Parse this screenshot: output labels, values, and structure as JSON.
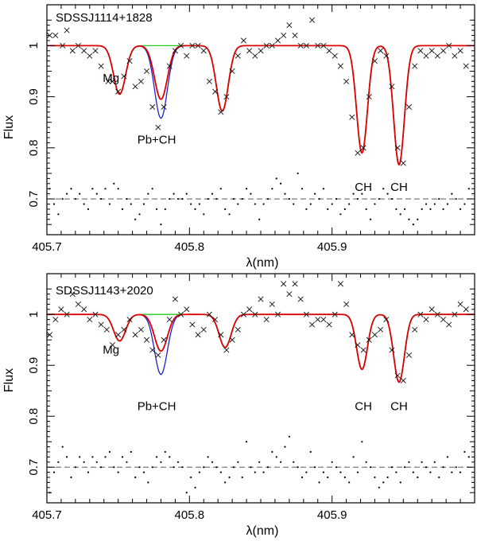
{
  "chart_data": [
    {
      "type": "line",
      "title": "SDSSJ1114+1828",
      "xlabel": "λ(nm)",
      "ylabel": "Flux",
      "xlim": [
        405.7,
        406.0
      ],
      "ylim": [
        0.63,
        1.08
      ],
      "xticks": [
        405.7,
        405.8,
        405.9
      ],
      "xtick_labels": [
        "405.7",
        "405.8",
        "405.9"
      ],
      "yticks": [
        0.7,
        0.8,
        0.9,
        1.0
      ],
      "ytick_labels": [
        "0.7",
        "0.8",
        "0.9",
        "1"
      ],
      "residual_offset": 0.7,
      "annotations": [
        {
          "text": "Mg",
          "x": 405.745,
          "y": 0.929
        },
        {
          "text": "Pb+CH",
          "x": 405.777,
          "y": 0.808
        },
        {
          "text": "CH",
          "x": 405.922,
          "y": 0.716
        },
        {
          "text": "CH",
          "x": 405.947,
          "y": 0.716
        }
      ],
      "lines": [
        {
          "name": "Mg",
          "center": 405.751,
          "sigma": 0.0042
        },
        {
          "name": "Pb+CH",
          "center": 405.78,
          "sigma": 0.0045
        },
        {
          "name": "line3",
          "center": 405.823,
          "sigma": 0.0042
        },
        {
          "name": "CH",
          "center": 405.921,
          "sigma": 0.0038
        },
        {
          "name": "CH",
          "center": 405.947,
          "sigma": 0.0038
        }
      ],
      "series": [
        {
          "name": "synthetic-red",
          "color": "#dd0000",
          "depths": [
            0.095,
            0.105,
            0.128,
            0.21,
            0.233
          ]
        },
        {
          "name": "synthetic-green",
          "color": "#22cc22",
          "depths": [
            0.095,
            0.0,
            0.128,
            0.21,
            0.233
          ]
        },
        {
          "name": "synthetic-blue",
          "color": "#1f22cc",
          "depths": [
            0.095,
            0.142,
            0.128,
            0.21,
            0.233
          ]
        }
      ],
      "observed": {
        "x": [
          405.702,
          405.706,
          405.711,
          405.714,
          405.718,
          405.722,
          405.726,
          405.73,
          405.734,
          405.738,
          405.743,
          405.746,
          405.75,
          405.754,
          405.758,
          405.762,
          405.766,
          405.77,
          405.774,
          405.778,
          405.782,
          405.786,
          405.79,
          405.794,
          405.798,
          405.802,
          405.806,
          405.81,
          405.814,
          405.818,
          405.822,
          405.826,
          405.83,
          405.834,
          405.838,
          405.842,
          405.846,
          405.85,
          405.854,
          405.858,
          405.862,
          405.866,
          405.87,
          405.874,
          405.878,
          405.882,
          405.886,
          405.89,
          405.894,
          405.898,
          405.902,
          405.906,
          405.91,
          405.914,
          405.918,
          405.922,
          405.926,
          405.93,
          405.934,
          405.938,
          405.942,
          405.946,
          405.95,
          405.954,
          405.958,
          405.962,
          405.966,
          405.97,
          405.974,
          405.978,
          405.982,
          405.986,
          405.99,
          405.994
        ],
        "y": [
          1.02,
          1.02,
          1.0,
          1.03,
          0.99,
          1.0,
          0.99,
          0.98,
          0.99,
          0.96,
          0.93,
          0.93,
          0.91,
          0.94,
          0.97,
          0.92,
          0.93,
          0.95,
          0.88,
          0.84,
          0.88,
          0.96,
          0.99,
          1.0,
          0.98,
          1.0,
          1.0,
          0.99,
          0.93,
          0.91,
          0.87,
          0.9,
          0.95,
          0.98,
          1.01,
          0.99,
          0.98,
          0.99,
          1.0,
          1.0,
          1.01,
          1.02,
          1.04,
          1.02,
          1.0,
          1.0,
          1.05,
          1.0,
          1.0,
          0.99,
          0.98,
          0.96,
          0.93,
          0.86,
          0.79,
          0.8,
          0.9,
          0.97,
          0.99,
          0.98,
          0.92,
          0.8,
          0.77,
          0.88,
          0.96,
          0.99,
          0.98,
          0.99,
          0.98,
          0.99,
          1.0,
          0.98,
          0.99,
          0.96
        ]
      },
      "residuals": {
        "x": [
          405.702,
          405.705,
          405.708,
          405.711,
          405.714,
          405.717,
          405.72,
          405.723,
          405.726,
          405.729,
          405.732,
          405.735,
          405.738,
          405.741,
          405.744,
          405.747,
          405.75,
          405.753,
          405.756,
          405.759,
          405.762,
          405.765,
          405.768,
          405.771,
          405.774,
          405.777,
          405.78,
          405.783,
          405.786,
          405.789,
          405.792,
          405.795,
          405.798,
          405.801,
          405.804,
          405.807,
          405.81,
          405.813,
          405.816,
          405.819,
          405.822,
          405.825,
          405.828,
          405.831,
          405.834,
          405.837,
          405.84,
          405.843,
          405.846,
          405.849,
          405.852,
          405.855,
          405.858,
          405.861,
          405.864,
          405.867,
          405.87,
          405.873,
          405.876,
          405.879,
          405.882,
          405.885,
          405.888,
          405.891,
          405.894,
          405.897,
          405.9,
          405.903,
          405.906,
          405.909,
          405.912,
          405.915,
          405.918,
          405.921,
          405.924,
          405.927,
          405.93,
          405.933,
          405.936,
          405.939,
          405.942,
          405.945,
          405.948,
          405.951,
          405.954,
          405.957,
          405.96,
          405.963,
          405.966,
          405.969,
          405.972,
          405.975,
          405.978,
          405.981,
          405.984,
          405.987,
          405.99,
          405.993,
          405.996
        ],
        "y": [
          0.72,
          0.69,
          0.67,
          0.7,
          0.71,
          0.72,
          0.7,
          0.71,
          0.69,
          0.68,
          0.72,
          0.71,
          0.7,
          0.72,
          0.69,
          0.73,
          0.72,
          0.68,
          0.7,
          0.69,
          0.66,
          0.67,
          0.69,
          0.71,
          0.72,
          0.68,
          0.65,
          0.68,
          0.7,
          0.71,
          0.7,
          0.7,
          0.71,
          0.69,
          0.68,
          0.69,
          0.67,
          0.7,
          0.71,
          0.7,
          0.72,
          0.68,
          0.67,
          0.7,
          0.69,
          0.7,
          0.72,
          0.71,
          0.69,
          0.66,
          0.69,
          0.7,
          0.72,
          0.74,
          0.73,
          0.71,
          0.7,
          0.69,
          0.75,
          0.72,
          0.68,
          0.69,
          0.71,
          0.7,
          0.72,
          0.68,
          0.69,
          0.7,
          0.67,
          0.68,
          0.69,
          0.71,
          0.7,
          0.71,
          0.68,
          0.66,
          0.69,
          0.7,
          0.72,
          0.71,
          0.7,
          0.68,
          0.67,
          0.68,
          0.66,
          0.65,
          0.66,
          0.68,
          0.69,
          0.68,
          0.69,
          0.7,
          0.68,
          0.69,
          0.71,
          0.7,
          0.68,
          0.69,
          0.72
        ]
      }
    },
    {
      "type": "line",
      "title": "SDSSJ1143+2020",
      "xlabel": "λ(nm)",
      "ylabel": "Flux",
      "xlim": [
        405.7,
        406.0
      ],
      "ylim": [
        0.63,
        1.08
      ],
      "xticks": [
        405.7,
        405.8,
        405.9
      ],
      "xtick_labels": [
        "405.7",
        "405.8",
        "405.9"
      ],
      "yticks": [
        0.7,
        0.8,
        0.9,
        1.0
      ],
      "ytick_labels": [
        "0.7",
        "0.8",
        "0.9",
        "1"
      ],
      "residual_offset": 0.7,
      "annotations": [
        {
          "text": "Mg",
          "x": 405.745,
          "y": 0.923
        },
        {
          "text": "Pb+CH",
          "x": 405.777,
          "y": 0.812
        },
        {
          "text": "CH",
          "x": 405.922,
          "y": 0.812
        },
        {
          "text": "CH",
          "x": 405.947,
          "y": 0.812
        }
      ],
      "lines": [
        {
          "name": "Mg",
          "center": 405.751,
          "sigma": 0.0042
        },
        {
          "name": "Pb+CH",
          "center": 405.78,
          "sigma": 0.0045
        },
        {
          "name": "line3",
          "center": 405.825,
          "sigma": 0.0042
        },
        {
          "name": "CH",
          "center": 405.921,
          "sigma": 0.0038
        },
        {
          "name": "CH",
          "center": 405.947,
          "sigma": 0.0038
        }
      ],
      "series": [
        {
          "name": "synthetic-red",
          "color": "#dd0000",
          "depths": [
            0.052,
            0.072,
            0.065,
            0.108,
            0.133
          ]
        },
        {
          "name": "synthetic-green",
          "color": "#22cc22",
          "depths": [
            0.052,
            0.0,
            0.065,
            0.108,
            0.133
          ]
        },
        {
          "name": "synthetic-blue",
          "color": "#1f22cc",
          "depths": [
            0.052,
            0.118,
            0.065,
            0.108,
            0.133
          ]
        }
      ],
      "observed": {
        "x": [
          405.702,
          405.706,
          405.71,
          405.714,
          405.718,
          405.722,
          405.726,
          405.73,
          405.734,
          405.738,
          405.742,
          405.746,
          405.75,
          405.754,
          405.758,
          405.762,
          405.766,
          405.77,
          405.774,
          405.778,
          405.782,
          405.786,
          405.79,
          405.794,
          405.798,
          405.802,
          405.806,
          405.81,
          405.814,
          405.818,
          405.822,
          405.826,
          405.83,
          405.834,
          405.838,
          405.842,
          405.846,
          405.85,
          405.854,
          405.858,
          405.862,
          405.866,
          405.87,
          405.874,
          405.878,
          405.882,
          405.886,
          405.89,
          405.894,
          405.898,
          405.902,
          405.906,
          405.91,
          405.914,
          405.918,
          405.922,
          405.926,
          405.93,
          405.934,
          405.938,
          405.942,
          405.946,
          405.95,
          405.954,
          405.958,
          405.962,
          405.966,
          405.97,
          405.974,
          405.978,
          405.982,
          405.986,
          405.99,
          405.994
        ],
        "y": [
          0.96,
          0.99,
          1.01,
          1.0,
          1.04,
          1.02,
          1.01,
          0.99,
          1.0,
          0.98,
          0.97,
          0.94,
          0.96,
          0.97,
          0.99,
          0.96,
          0.97,
          0.95,
          0.93,
          0.92,
          0.95,
          0.99,
          1.03,
          1.0,
          1.01,
          0.98,
          0.96,
          0.97,
          1.0,
          0.99,
          0.96,
          0.93,
          0.95,
          0.97,
          1.0,
          1.01,
          1.0,
          1.03,
          0.99,
          1.02,
          1.0,
          1.06,
          1.04,
          1.06,
          1.03,
          1.0,
          0.98,
          0.99,
          0.99,
          0.98,
          1.0,
          1.06,
          1.02,
          0.96,
          0.94,
          0.93,
          0.95,
          0.96,
          0.97,
          0.99,
          0.93,
          0.88,
          0.87,
          0.92,
          0.97,
          1.0,
          0.99,
          1.01,
          1.0,
          0.99,
          0.98,
          1.0,
          1.02,
          1.01
        ]
      },
      "residuals": {
        "x": [
          405.702,
          405.705,
          405.708,
          405.711,
          405.714,
          405.717,
          405.72,
          405.723,
          405.726,
          405.729,
          405.732,
          405.735,
          405.738,
          405.741,
          405.744,
          405.747,
          405.75,
          405.753,
          405.756,
          405.759,
          405.762,
          405.765,
          405.768,
          405.771,
          405.774,
          405.777,
          405.78,
          405.783,
          405.786,
          405.789,
          405.792,
          405.795,
          405.798,
          405.801,
          405.804,
          405.807,
          405.81,
          405.813,
          405.816,
          405.819,
          405.822,
          405.825,
          405.828,
          405.831,
          405.834,
          405.837,
          405.84,
          405.843,
          405.846,
          405.849,
          405.852,
          405.855,
          405.858,
          405.861,
          405.864,
          405.867,
          405.87,
          405.873,
          405.876,
          405.879,
          405.882,
          405.885,
          405.888,
          405.891,
          405.894,
          405.897,
          405.9,
          405.903,
          405.906,
          405.909,
          405.912,
          405.915,
          405.918,
          405.921,
          405.924,
          405.927,
          405.93,
          405.933,
          405.936,
          405.939,
          405.942,
          405.945,
          405.948,
          405.951,
          405.954,
          405.957,
          405.96,
          405.963,
          405.966,
          405.969,
          405.972,
          405.975,
          405.978,
          405.981,
          405.984,
          405.987,
          405.99,
          405.993,
          405.996
        ],
        "y": [
          0.65,
          0.69,
          0.71,
          0.74,
          0.72,
          0.68,
          0.7,
          0.72,
          0.71,
          0.69,
          0.72,
          0.71,
          0.7,
          0.72,
          0.73,
          0.7,
          0.69,
          0.72,
          0.71,
          0.73,
          0.68,
          0.7,
          0.69,
          0.67,
          0.7,
          0.72,
          0.71,
          0.73,
          0.72,
          0.7,
          0.71,
          0.7,
          0.65,
          0.68,
          0.66,
          0.69,
          0.7,
          0.72,
          0.71,
          0.7,
          0.69,
          0.67,
          0.68,
          0.7,
          0.71,
          0.68,
          0.75,
          0.7,
          0.69,
          0.71,
          0.69,
          0.7,
          0.73,
          0.72,
          0.71,
          0.74,
          0.76,
          0.71,
          0.7,
          0.68,
          0.69,
          0.73,
          0.7,
          0.67,
          0.69,
          0.68,
          0.71,
          0.7,
          0.69,
          0.68,
          0.67,
          0.72,
          0.69,
          0.75,
          0.71,
          0.7,
          0.68,
          0.66,
          0.67,
          0.68,
          0.7,
          0.69,
          0.67,
          0.7,
          0.71,
          0.69,
          0.68,
          0.71,
          0.7,
          0.69,
          0.71,
          0.68,
          0.7,
          0.72,
          0.69,
          0.7,
          0.69,
          0.73,
          0.72
        ]
      }
    }
  ]
}
